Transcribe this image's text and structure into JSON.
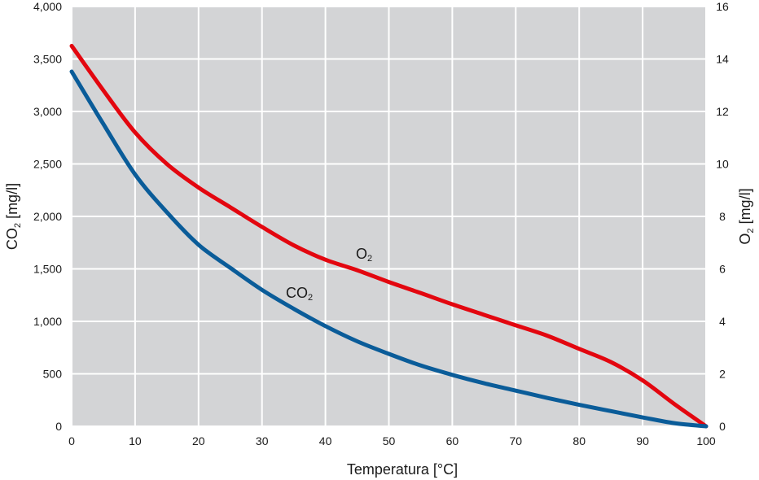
{
  "chart_data": {
    "type": "line",
    "title": "",
    "xlabel": "Temperatura [°C]",
    "ylabel_left": {
      "base": "CO",
      "sub": "2",
      "unit": " [mg/l]"
    },
    "ylabel_right": {
      "base": "O",
      "sub": "2",
      "unit": " [mg/l]"
    },
    "xlim": [
      0,
      100
    ],
    "ylim_left": [
      0,
      4000
    ],
    "ylim_right": [
      0,
      16
    ],
    "x_ticks": [
      "0",
      "10",
      "20",
      "30",
      "40",
      "50",
      "60",
      "70",
      "80",
      "90",
      "100"
    ],
    "y_left_ticks": [
      "0",
      "500",
      "1,000",
      "1,500",
      "2,000",
      "2,500",
      "3,000",
      "3,500",
      "4,000"
    ],
    "y_right_ticks": [
      "0",
      "2",
      "4",
      "6",
      "8",
      "10",
      "12",
      "14",
      "16"
    ],
    "grid": true,
    "colors": {
      "plot_background": "#d3d4d6",
      "grid": "#ffffff",
      "co2": "#0a5c99",
      "o2": "#e3060f"
    },
    "series": [
      {
        "key": "o2",
        "axis": "right",
        "label": {
          "base": "O",
          "sub": "2"
        },
        "x": [
          0,
          5,
          10,
          15,
          20,
          25,
          30,
          35,
          40,
          45,
          50,
          55,
          60,
          65,
          70,
          75,
          80,
          85,
          90,
          95,
          100
        ],
        "y": [
          14.5,
          12.8,
          11.2,
          10.0,
          9.1,
          8.35,
          7.6,
          6.9,
          6.35,
          5.95,
          5.5,
          5.08,
          4.65,
          4.25,
          3.85,
          3.45,
          2.95,
          2.45,
          1.75,
          0.85,
          0.0
        ]
      },
      {
        "key": "co2",
        "axis": "left",
        "label": {
          "base": "CO",
          "sub": "2"
        },
        "x": [
          0,
          5,
          10,
          15,
          20,
          25,
          30,
          35,
          40,
          45,
          50,
          55,
          60,
          65,
          70,
          75,
          80,
          85,
          90,
          95,
          100
        ],
        "y": [
          3380,
          2880,
          2400,
          2040,
          1730,
          1510,
          1300,
          1120,
          955,
          810,
          690,
          580,
          490,
          410,
          340,
          270,
          205,
          145,
          85,
          30,
          0
        ]
      }
    ]
  }
}
